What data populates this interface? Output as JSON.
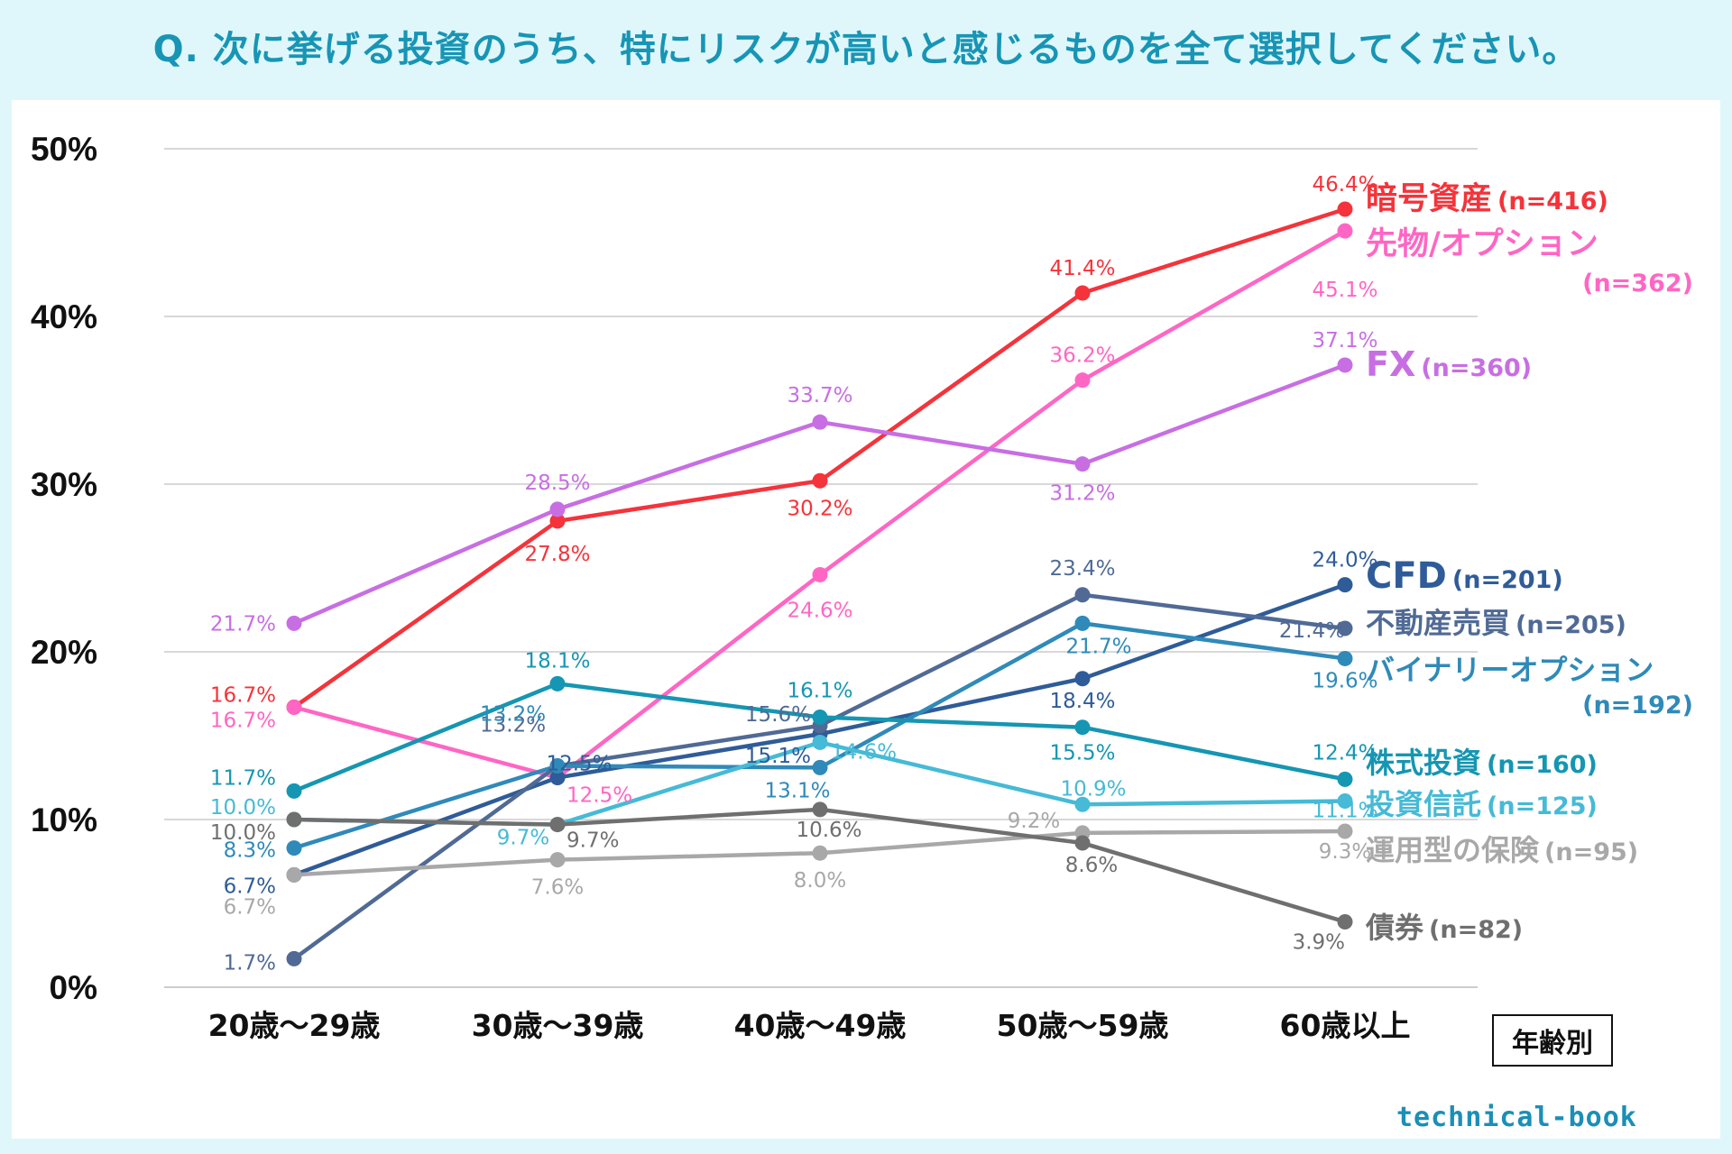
{
  "title": "Q. 次に挙げる投資のうち、特にリスクが高いと感じるものを全て選択してください。",
  "age_box_label": "年齢別",
  "brand": "technical-book",
  "chart_data": {
    "type": "line",
    "title": "Q. 次に挙げる投資のうち、特にリスクが高いと感じるものを全て選択してください。",
    "xlabel": "年齢別",
    "ylabel": "",
    "categories": [
      "20歳〜29歳",
      "30歳〜39歳",
      "40歳〜49歳",
      "50歳〜59歳",
      "60歳以上"
    ],
    "ylim": [
      0,
      50
    ],
    "yticks": [
      0,
      10,
      20,
      30,
      40,
      50
    ],
    "ytick_labels": [
      "0%",
      "10%",
      "20%",
      "30%",
      "40%",
      "50%"
    ],
    "grid": true,
    "legend_placement": "right (inline labels)",
    "series": [
      {
        "name": "暗号資産",
        "n": "(n=416)",
        "color": "#f5333a",
        "values": [
          16.7,
          27.8,
          30.2,
          41.4,
          46.4
        ]
      },
      {
        "name": "先物/オプション",
        "n": "(n=362)",
        "color": "#ff66c4",
        "values": [
          16.7,
          12.5,
          24.6,
          36.2,
          45.1
        ]
      },
      {
        "name": "FX",
        "n": "(n=360)",
        "color": "#c86ee3",
        "values": [
          21.7,
          28.5,
          33.7,
          31.2,
          37.1
        ]
      },
      {
        "name": "CFD",
        "n": "(n=201)",
        "color": "#2f5c98",
        "values": [
          6.7,
          12.5,
          15.1,
          18.4,
          24.0
        ]
      },
      {
        "name": "不動産売買",
        "n": "(n=205)",
        "color": "#506a95",
        "values": [
          1.7,
          13.2,
          15.6,
          23.4,
          21.4
        ]
      },
      {
        "name": "バイナリーオプション",
        "n": "(n=192)",
        "color": "#2f8ab9",
        "values": [
          8.3,
          13.2,
          13.1,
          21.7,
          19.6
        ]
      },
      {
        "name": "株式投資",
        "n": "(n=160)",
        "color": "#1596b2",
        "values": [
          11.7,
          18.1,
          16.1,
          15.5,
          12.4
        ]
      },
      {
        "name": "投資信託",
        "n": "(n=125)",
        "color": "#46bad6",
        "values": [
          10.0,
          9.7,
          14.6,
          10.9,
          11.1
        ]
      },
      {
        "name": "運用型の保険",
        "n": "(n=95)",
        "color": "#a8a8a8",
        "values": [
          6.7,
          7.6,
          8.0,
          9.2,
          9.3
        ]
      },
      {
        "name": "債券",
        "n": "(n=82)",
        "color": "#6f6f6f",
        "values": [
          10.0,
          9.7,
          10.6,
          8.6,
          3.9
        ]
      }
    ],
    "data_labels": [
      [
        "16.7%",
        "27.8%",
        "30.2%",
        "41.4%",
        "46.4%"
      ],
      [
        "16.7%",
        "12.5%",
        "24.6%",
        "36.2%",
        "45.1%"
      ],
      [
        "21.7%",
        "28.5%",
        "33.7%",
        "31.2%",
        "37.1%"
      ],
      [
        "6.7%",
        "12.5%",
        "15.1%",
        "18.4%",
        "24.0%"
      ],
      [
        "1.7%",
        "13.2%",
        "15.6%",
        "23.4%",
        "21.4%"
      ],
      [
        "8.3%",
        "13.2%",
        "13.1%",
        "21.7%",
        "19.6%"
      ],
      [
        "11.7%",
        "18.1%",
        "16.1%",
        "15.5%",
        "12.4%"
      ],
      [
        "10.0%",
        "9.7%",
        "14.6%",
        "10.9%",
        "11.1%"
      ],
      [
        "6.7%",
        "7.6%",
        "8.0%",
        "9.2%",
        "9.3%"
      ],
      [
        "10.0%",
        "9.7%",
        "10.6%",
        "8.6%",
        "3.9%"
      ]
    ]
  }
}
